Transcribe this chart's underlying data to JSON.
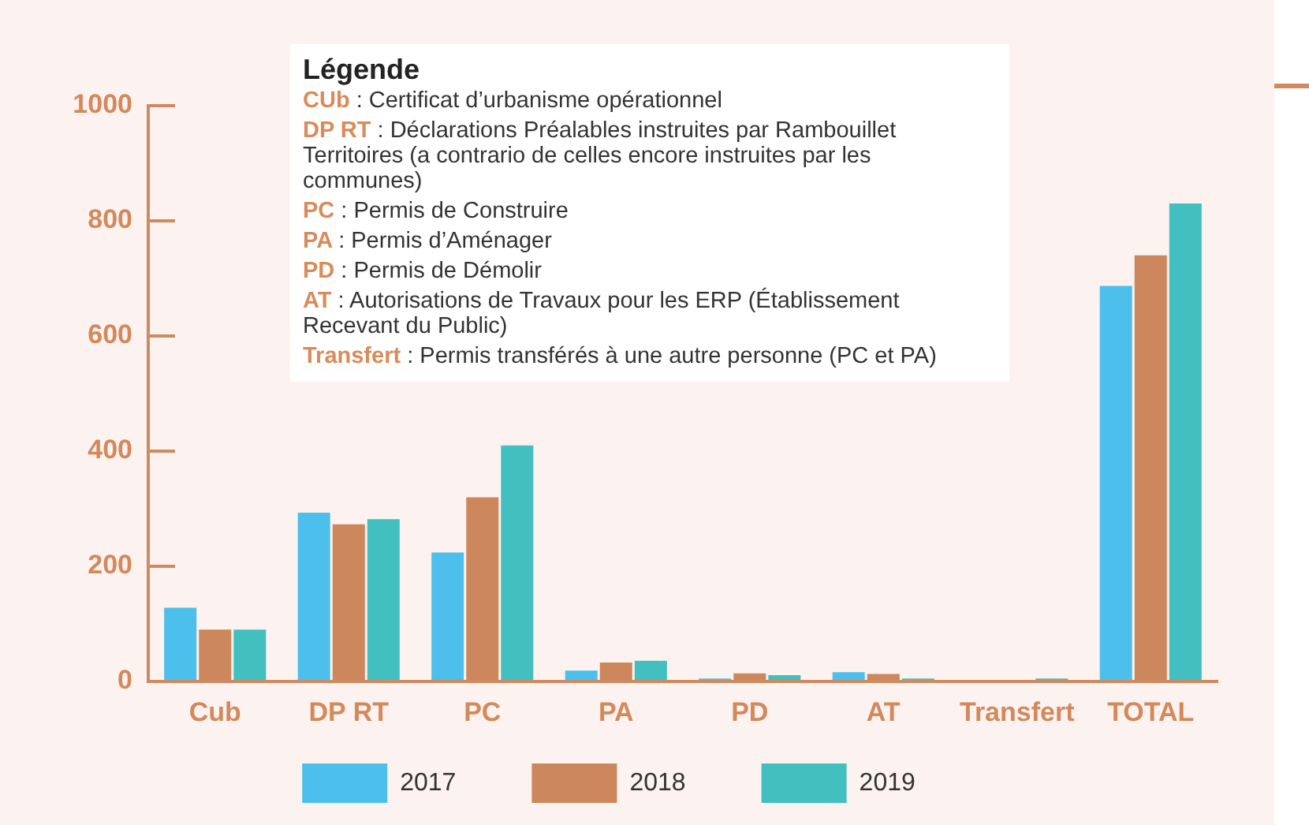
{
  "chart_data": {
    "type": "bar",
    "categories": [
      "Cub",
      "DP RT",
      "PC",
      "PA",
      "PD",
      "AT",
      "Transfert",
      "TOTAL"
    ],
    "series": [
      {
        "name": "2017",
        "color": "#4dbfec",
        "values": [
          128,
          293,
          224,
          19,
          5,
          16,
          0,
          687
        ]
      },
      {
        "name": "2018",
        "color": "#cd875c",
        "values": [
          90,
          273,
          320,
          33,
          14,
          13,
          2,
          740
        ]
      },
      {
        "name": "2019",
        "color": "#42c0bf",
        "values": [
          90,
          282,
          410,
          36,
          11,
          5,
          5,
          830
        ]
      }
    ],
    "ylim": [
      0,
      1000
    ],
    "yticks": [
      0,
      200,
      400,
      600,
      800,
      1000
    ],
    "grid": false,
    "legend": "bottom",
    "annotations": [
      "Légende",
      "CUb : Certificat d’urbanisme opérationnel",
      "DP RT : Déclarations Préalables instruites par Rambouillet Territoires (a contrario de celles encore instruites par les communes)",
      "PC : Permis de Construire",
      "PA : Permis d’Aménager",
      "PD : Permis de Démolir",
      "AT : Autorisations de Travaux pour les ERP (Établissement Recevant du Public)",
      "Transfert : Permis transférés à une autre personne (PC et PA)"
    ]
  }
}
